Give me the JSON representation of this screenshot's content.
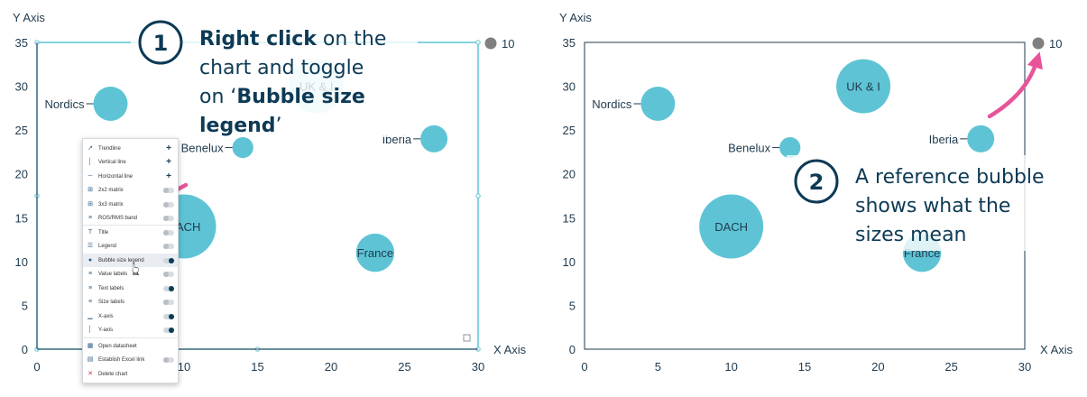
{
  "chart_data": [
    {
      "type": "scatter",
      "subtype": "bubble",
      "xlabel": "X Axis",
      "ylabel": "Y Axis",
      "xlim": [
        0,
        30
      ],
      "ylim": [
        0,
        35
      ],
      "x_ticks": [
        "0",
        "5",
        "10",
        "15",
        "20",
        "25",
        "30"
      ],
      "y_ticks": [
        "0",
        "5",
        "10",
        "15",
        "20",
        "25",
        "30",
        "35"
      ],
      "bubble_color": "#5ec4d5",
      "points": [
        {
          "name": "Nordics",
          "x": 5,
          "y": 28,
          "size": 4
        },
        {
          "name": "Benelux",
          "x": 14,
          "y": 23,
          "size": 1.5
        },
        {
          "name": "UK & I",
          "x": 19,
          "y": 30,
          "size": 10
        },
        {
          "name": "Iberia",
          "x": 27,
          "y": 24,
          "size": 2.5
        },
        {
          "name": "DACH",
          "x": 10,
          "y": 14,
          "size": 14
        },
        {
          "name": "France",
          "x": 23,
          "y": 11,
          "size": 5
        }
      ],
      "bubble_size_legend": {
        "value": "10",
        "color": "#808080"
      },
      "annotation": {
        "step": "1",
        "line1_bold": "Right click",
        "line1_rest": " on the",
        "line2": "chart and toggle",
        "line3_pre": "on ‘",
        "line3_bold": "Bubble size",
        "line4_bold": "legend",
        "line4_post": "’"
      }
    },
    {
      "type": "scatter",
      "subtype": "bubble",
      "xlabel": "X Axis",
      "ylabel": "Y Axis",
      "xlim": [
        0,
        30
      ],
      "ylim": [
        0,
        35
      ],
      "x_ticks": [
        "0",
        "5",
        "10",
        "15",
        "20",
        "25",
        "30"
      ],
      "y_ticks": [
        "0",
        "5",
        "10",
        "15",
        "20",
        "25",
        "30",
        "35"
      ],
      "bubble_color": "#5ec4d5",
      "points": [
        {
          "name": "Nordics",
          "x": 5,
          "y": 28,
          "size": 4
        },
        {
          "name": "Benelux",
          "x": 14,
          "y": 23,
          "size": 1.5
        },
        {
          "name": "UK & I",
          "x": 19,
          "y": 30,
          "size": 10
        },
        {
          "name": "Iberia",
          "x": 27,
          "y": 24,
          "size": 2.5
        },
        {
          "name": "DACH",
          "x": 10,
          "y": 14,
          "size": 14
        },
        {
          "name": "France",
          "x": 23,
          "y": 11,
          "size": 5
        }
      ],
      "bubble_size_legend": {
        "value": "10",
        "color": "#808080"
      },
      "annotation": {
        "step": "2",
        "lines": [
          "A reference bubble",
          "shows what the",
          "sizes mean"
        ]
      }
    }
  ],
  "context_menu": {
    "items": [
      {
        "label": "Trendline",
        "icon": "trendline-icon",
        "control": "plus"
      },
      {
        "label": "Vertical line",
        "icon": "vertical-line-icon",
        "control": "plus"
      },
      {
        "label": "Horizontal line",
        "icon": "horizontal-line-icon",
        "control": "plus"
      },
      {
        "label": "2x2 matrix",
        "icon": "matrix-2x2-icon",
        "control": "toggle",
        "on": false
      },
      {
        "label": "3x3 matrix",
        "icon": "matrix-3x3-icon",
        "control": "toggle",
        "on": false
      },
      {
        "label": "ROS/RMS band",
        "icon": "band-icon",
        "control": "toggle",
        "on": false
      },
      {
        "label": "Title",
        "icon": "title-icon",
        "control": "toggle",
        "on": false
      },
      {
        "label": "Legend",
        "icon": "legend-icon",
        "control": "toggle",
        "on": false
      },
      {
        "label": "Bubble size legend",
        "icon": "bubble-legend-icon",
        "control": "toggle",
        "on": true,
        "highlighted": true
      },
      {
        "label": "Value labels",
        "icon": "value-labels-icon",
        "control": "toggle",
        "on": false
      },
      {
        "label": "Text labels",
        "icon": "text-labels-icon",
        "control": "toggle",
        "on": true
      },
      {
        "label": "Size labels",
        "icon": "size-labels-icon",
        "control": "toggle",
        "on": false
      },
      {
        "label": "X-axis",
        "icon": "x-axis-icon",
        "control": "toggle",
        "on": true
      },
      {
        "label": "Y-axis",
        "icon": "y-axis-icon",
        "control": "toggle",
        "on": true
      },
      {
        "label": "Open datasheet",
        "icon": "datasheet-icon",
        "control": "none"
      },
      {
        "label": "Establish Excel link",
        "icon": "excel-link-icon",
        "control": "toggle",
        "on": false
      },
      {
        "label": "Delete chart",
        "icon": "delete-icon",
        "control": "none"
      }
    ]
  }
}
